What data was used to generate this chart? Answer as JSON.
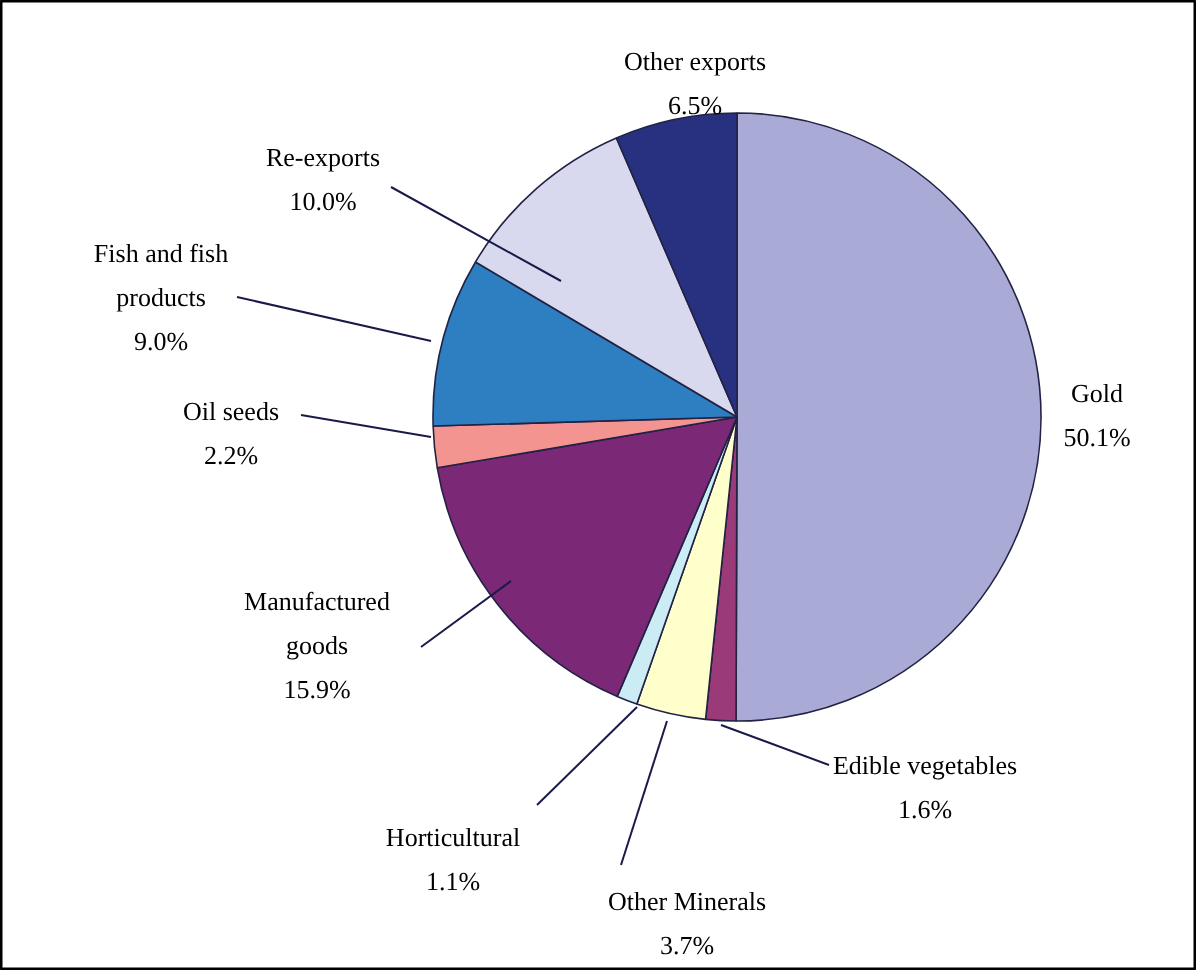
{
  "chart_data": {
    "type": "pie",
    "categories": [
      "Gold",
      "Edible vegetables",
      "Other Minerals",
      "Horticultural",
      "Manufactured goods",
      "Oil seeds",
      "Fish and fish products",
      "Re-exports",
      "Other exports"
    ],
    "values": [
      50.1,
      1.6,
      3.7,
      1.1,
      15.9,
      2.2,
      9.0,
      10.0,
      6.5
    ],
    "colors": [
      "#aaaad6",
      "#9b3a78",
      "#ffffcc",
      "#ccecf5",
      "#7b2877",
      "#f49491",
      "#2e7fc2",
      "#d8d8ee",
      "#27317f"
    ],
    "value_labels": [
      "50.1%",
      "1.6%",
      "3.7%",
      "1.1%",
      "15.9%",
      "2.2%",
      "9.0%",
      "10.0%",
      "6.5%"
    ]
  }
}
